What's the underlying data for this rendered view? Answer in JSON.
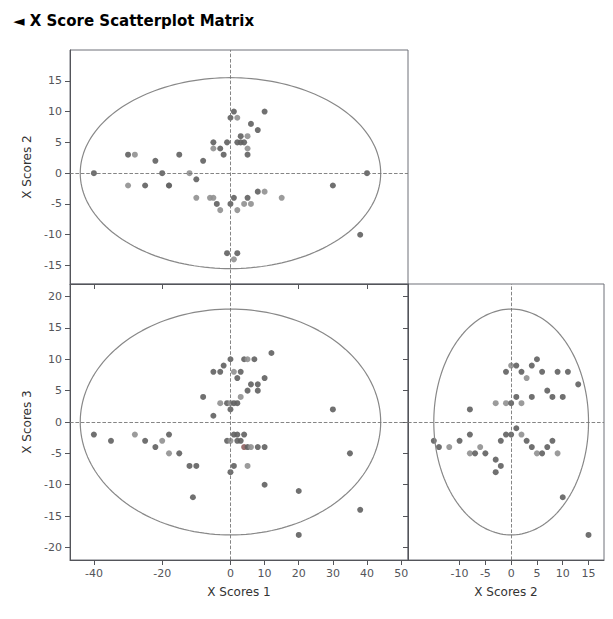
{
  "chart_data": {
    "type": "scatter",
    "title": "◄ X Score Scatterplot Matrix",
    "grid": false,
    "panels": [
      {
        "ylabel": "X Scores 2",
        "xlim": [
          -47,
          52
        ],
        "ylim": [
          -18,
          20
        ],
        "xticks": [
          -40,
          -20,
          0,
          20,
          40
        ],
        "yticks": [
          -15,
          -10,
          -5,
          0,
          5,
          10,
          15
        ],
        "tick_labels": "y",
        "circle_rx": 44,
        "circle_ry": 15.5,
        "hline": 0,
        "vline": 0,
        "x": [
          -40,
          -30,
          -28,
          -22,
          -20,
          -18,
          -15,
          -12,
          -10,
          -8,
          -5,
          -5,
          -3,
          -2,
          -1,
          0,
          1,
          2,
          3,
          4,
          5,
          6,
          8,
          10,
          -6,
          -4,
          -3,
          0,
          1,
          2,
          4,
          5,
          6,
          8,
          -1,
          1,
          2,
          30,
          38,
          40,
          -30,
          -10,
          5,
          5,
          3,
          2,
          -5,
          10,
          15,
          -25,
          -18
        ],
        "values": [
          0,
          3,
          3,
          2,
          0,
          -2,
          3,
          0,
          -1,
          2,
          5,
          4,
          4,
          3,
          5,
          9,
          10,
          9,
          5,
          5,
          6,
          8,
          7,
          10,
          -4,
          -5,
          -6,
          -5,
          -4,
          -6,
          -5,
          -4,
          -5,
          -3,
          -13,
          -14,
          -13,
          -2,
          -10,
          0,
          -2,
          -4,
          3,
          4,
          6,
          5,
          -4,
          -3,
          -4,
          -2,
          -2
        ],
        "colors": [
          "#606060",
          "#606060",
          "#909090",
          "#606060",
          "#606060",
          "#909090",
          "#606060",
          "#909090",
          "#606060",
          "#606060",
          "#606060",
          "#909090",
          "#606060",
          "#606060",
          "#606060",
          "#606060",
          "#606060",
          "#909090",
          "#606060",
          "#606060",
          "#909090",
          "#606060",
          "#606060",
          "#606060",
          "#909090",
          "#606060",
          "#909090",
          "#606060",
          "#606060",
          "#909090",
          "#909090",
          "#606060",
          "#909090",
          "#606060",
          "#606060",
          "#909090",
          "#606060",
          "#606060",
          "#606060",
          "#606060",
          "#909090",
          "#909090",
          "#606060",
          "#909090",
          "#606060",
          "#606060",
          "#909090",
          "#909090",
          "#909090",
          "#606060",
          "#606060"
        ]
      },
      {
        "xlabel": "X Scores 1",
        "ylabel": "X Scores 3",
        "xlim": [
          -47,
          52
        ],
        "ylim": [
          -22,
          22
        ],
        "xticks": [
          -40,
          -20,
          0,
          10,
          20,
          30,
          40,
          50
        ],
        "yticks": [
          -20,
          -15,
          -10,
          -5,
          0,
          5,
          10,
          15,
          20
        ],
        "circle_rx": 44,
        "circle_ry": 18,
        "hline": 0,
        "vline": 0,
        "x": [
          -40,
          -35,
          -28,
          -25,
          -22,
          -20,
          -18,
          -18,
          -15,
          -12,
          -10,
          -8,
          -5,
          -3,
          -2,
          0,
          1,
          2,
          3,
          4,
          5,
          7,
          8,
          10,
          12,
          -3,
          -1,
          0,
          1,
          2,
          3,
          5,
          6,
          8,
          -1,
          0,
          1,
          2,
          3,
          4,
          5,
          6,
          8,
          10,
          0,
          1,
          5,
          10,
          20,
          30,
          35,
          38,
          20,
          -11,
          2,
          4,
          0,
          -5
        ],
        "values": [
          -2,
          -3,
          -2,
          -3,
          -4,
          -3,
          -2,
          -5,
          -5,
          -7,
          -7,
          4,
          8,
          8,
          9,
          10,
          8,
          7,
          8,
          10,
          10,
          10,
          6,
          7,
          11,
          3,
          3,
          3,
          3,
          3,
          4,
          5,
          6,
          5,
          -3,
          -3,
          -2,
          -3,
          -3,
          -4,
          -4,
          -4,
          -4,
          -4,
          -8,
          -7,
          -7,
          -10,
          -11,
          2,
          -5,
          -14,
          -18,
          -12,
          -2,
          -2,
          2,
          1
        ],
        "colors": [
          "#606060",
          "#606060",
          "#909090",
          "#606060",
          "#606060",
          "#909090",
          "#606060",
          "#909090",
          "#606060",
          "#606060",
          "#606060",
          "#606060",
          "#606060",
          "#606060",
          "#606060",
          "#606060",
          "#909090",
          "#606060",
          "#606060",
          "#606060",
          "#909090",
          "#606060",
          "#606060",
          "#606060",
          "#606060",
          "#909090",
          "#606060",
          "#909090",
          "#606060",
          "#606060",
          "#909090",
          "#606060",
          "#606060",
          "#606060",
          "#606060",
          "#909090",
          "#606060",
          "#606060",
          "#606060",
          "#906060",
          "#606060",
          "#909090",
          "#606060",
          "#606060",
          "#606060",
          "#606060",
          "#909090",
          "#606060",
          "#606060",
          "#606060",
          "#606060",
          "#606060",
          "#606060",
          "#606060",
          "#606060",
          "#606060",
          "#606060",
          "#606060"
        ]
      },
      {
        "xlabel": "X Scores 2",
        "xlim": [
          -20,
          18
        ],
        "ylim": [
          -22,
          22
        ],
        "xticks": [
          -10,
          -5,
          0,
          5,
          10,
          15
        ],
        "yticks": [
          -20,
          -15,
          -10,
          -5,
          0,
          5,
          10,
          15,
          20
        ],
        "tick_labels": "x",
        "circle_rx": 15,
        "circle_ry": 18,
        "hline": 0,
        "vline": 0,
        "x": [
          -15,
          -14,
          -12,
          -10,
          -8,
          -8,
          -7,
          -6,
          -5,
          -3,
          -3,
          -2,
          -2,
          -1,
          0,
          1,
          2,
          3,
          4,
          5,
          6,
          7,
          8,
          9,
          10,
          -3,
          -1,
          0,
          1,
          2,
          3,
          4,
          5,
          6,
          7,
          8,
          9,
          10,
          11,
          13,
          -1,
          0,
          1,
          2,
          4,
          -8,
          15
        ],
        "values": [
          -3,
          -4,
          -4,
          -3,
          -2,
          -5,
          -5,
          -4,
          -5,
          -6,
          -8,
          -7,
          -3,
          -2,
          -2,
          -1,
          -2,
          -3,
          -4,
          -5,
          -5,
          -4,
          -3,
          -5,
          -12,
          3,
          8,
          9,
          9,
          8,
          7,
          9,
          10,
          8,
          5,
          4,
          8,
          4,
          8,
          6,
          3,
          3,
          4,
          3,
          4,
          2,
          -18
        ],
        "colors": [
          "#606060",
          "#606060",
          "#909090",
          "#606060",
          "#606060",
          "#909090",
          "#606060",
          "#909090",
          "#606060",
          "#606060",
          "#606060",
          "#606060",
          "#606060",
          "#606060",
          "#606060",
          "#606060",
          "#909090",
          "#606060",
          "#606060",
          "#909090",
          "#606060",
          "#606060",
          "#606060",
          "#909090",
          "#606060",
          "#909090",
          "#606060",
          "#909090",
          "#606060",
          "#606060",
          "#909090",
          "#606060",
          "#606060",
          "#606060",
          "#606060",
          "#606060",
          "#606060",
          "#606060",
          "#606060",
          "#606060",
          "#909090",
          "#606060",
          "#606060",
          "#909090",
          "#606060",
          "#606060",
          "#606060"
        ]
      }
    ]
  }
}
